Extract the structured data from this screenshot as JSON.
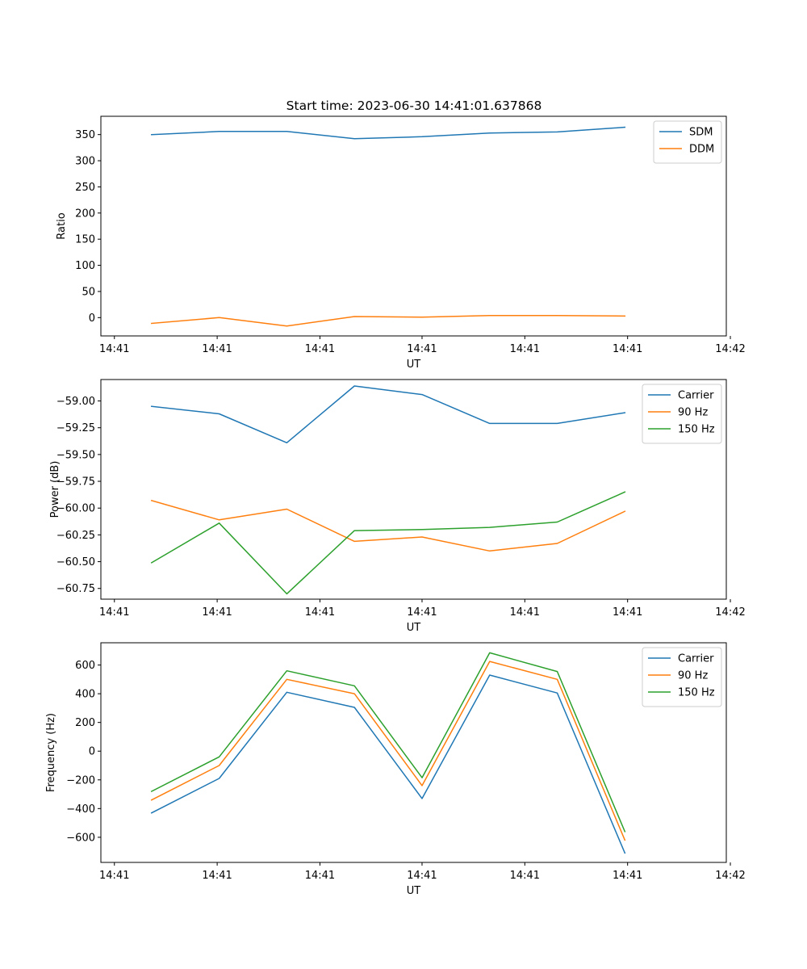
{
  "figure": {
    "title": "Start time: 2023-06-30 14:41:01.637868"
  },
  "chart_data": [
    {
      "type": "line",
      "xlabel": "UT",
      "ylabel": "Ratio",
      "x_tick_labels": [
        "14:41",
        "14:41",
        "14:41",
        "14:41",
        "14:41",
        "14:41",
        "14:42"
      ],
      "x": [
        0,
        1,
        2,
        3,
        4,
        5,
        6,
        7
      ],
      "xlim": [
        -0.75,
        8.5
      ],
      "x_ticks": [
        -0.55,
        0.97,
        2.49,
        4.0,
        5.52,
        7.04,
        8.56
      ],
      "ylim": [
        -35,
        385
      ],
      "y_ticks": [
        0,
        50,
        100,
        150,
        200,
        250,
        300,
        350
      ],
      "legend": "top-right",
      "grid": false,
      "series": [
        {
          "name": "SDM",
          "color": "#1f77b4",
          "values": [
            350,
            356,
            356,
            342,
            346,
            353,
            355,
            364
          ]
        },
        {
          "name": "DDM",
          "color": "#ff7f0e",
          "values": [
            -11,
            0,
            -16,
            2,
            1,
            4,
            4,
            3
          ]
        }
      ]
    },
    {
      "type": "line",
      "xlabel": "UT",
      "ylabel": "Power (dB)",
      "x_tick_labels": [
        "14:41",
        "14:41",
        "14:41",
        "14:41",
        "14:41",
        "14:41",
        "14:42"
      ],
      "x": [
        0,
        1,
        2,
        3,
        4,
        5,
        6,
        7
      ],
      "xlim": [
        -0.75,
        8.5
      ],
      "x_ticks": [
        -0.55,
        0.97,
        2.49,
        4.0,
        5.52,
        7.04,
        8.56
      ],
      "ylim": [
        -60.85,
        -58.8
      ],
      "y_ticks": [
        -59.0,
        -59.25,
        -59.5,
        -59.75,
        -60.0,
        -60.25,
        -60.5,
        -60.75
      ],
      "y_tick_labels": [
        "−59.00",
        "−59.25",
        "−59.50",
        "−59.75",
        "−60.00",
        "−60.25",
        "−60.50",
        "−60.75"
      ],
      "legend": "top-right",
      "grid": false,
      "series": [
        {
          "name": "Carrier",
          "color": "#1f77b4",
          "values": [
            -59.05,
            -59.12,
            -59.39,
            -58.86,
            -58.94,
            -59.21,
            -59.21,
            -59.11
          ]
        },
        {
          "name": "90 Hz",
          "color": "#ff7f0e",
          "values": [
            -59.93,
            -60.11,
            -60.01,
            -60.31,
            -60.27,
            -60.4,
            -60.33,
            -60.03
          ]
        },
        {
          "name": "150 Hz",
          "color": "#2ca02c",
          "values": [
            -60.51,
            -60.14,
            -60.8,
            -60.21,
            -60.2,
            -60.18,
            -60.13,
            -59.85
          ]
        }
      ]
    },
    {
      "type": "line",
      "xlabel": "UT",
      "ylabel": "Frequency (Hz)",
      "x_tick_labels": [
        "14:41",
        "14:41",
        "14:41",
        "14:41",
        "14:41",
        "14:41",
        "14:42"
      ],
      "x": [
        0,
        1,
        2,
        3,
        4,
        5,
        6,
        7
      ],
      "xlim": [
        -0.75,
        8.5
      ],
      "x_ticks": [
        -0.55,
        0.97,
        2.49,
        4.0,
        5.52,
        7.04,
        8.56
      ],
      "ylim": [
        -775,
        755
      ],
      "y_ticks": [
        600,
        400,
        200,
        0,
        -200,
        -400,
        -600
      ],
      "y_tick_labels": [
        "600",
        "400",
        "200",
        "0",
        "−200",
        "−400",
        "−600"
      ],
      "legend": "top-right",
      "grid": false,
      "series": [
        {
          "name": "Carrier",
          "color": "#1f77b4",
          "values": [
            -430,
            -190,
            410,
            305,
            -330,
            530,
            405,
            -710
          ]
        },
        {
          "name": "90 Hz",
          "color": "#ff7f0e",
          "values": [
            -340,
            -100,
            500,
            400,
            -240,
            625,
            500,
            -620
          ]
        },
        {
          "name": "150 Hz",
          "color": "#2ca02c",
          "values": [
            -280,
            -40,
            560,
            455,
            -185,
            685,
            555,
            -560
          ]
        }
      ]
    }
  ]
}
